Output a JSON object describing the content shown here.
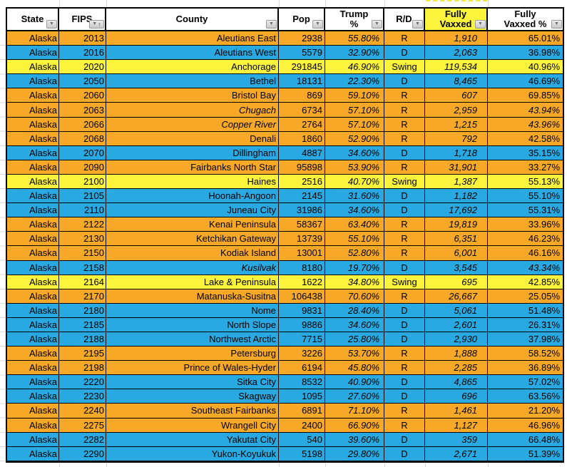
{
  "header": {
    "state": "State",
    "fips": "FIPS",
    "county": "County",
    "pop": "Pop",
    "trump": "Trump\n%",
    "rd": "R/D",
    "vaxxed": "Fully\nVaxxed",
    "vaxxed_pct": "Fully\nVaxxed %"
  },
  "icons": {
    "filter": "▼",
    "sort_ascending": "↑"
  },
  "colors": {
    "republican_row": "#f7a826",
    "democrat_row": "#29a9e1",
    "swing_row": "#fbf33c",
    "vaxxed_header_bg": "#fbf33c"
  },
  "rows": [
    {
      "state": "Alaska",
      "fips": "2013",
      "county": "Aleutians East",
      "pop": "2938",
      "trump": "55.80%",
      "rd": "R",
      "vaxxed": "1,910",
      "vaxxed_pct": "65.01%",
      "italic": false
    },
    {
      "state": "Alaska",
      "fips": "2016",
      "county": "Aleutians West",
      "pop": "5579",
      "trump": "32.90%",
      "rd": "D",
      "vaxxed": "2,063",
      "vaxxed_pct": "36.98%",
      "italic": false
    },
    {
      "state": "Alaska",
      "fips": "2020",
      "county": "Anchorage",
      "pop": "291845",
      "trump": "46.90%",
      "rd": "Swing",
      "vaxxed": "119,534",
      "vaxxed_pct": "40.96%",
      "italic": false
    },
    {
      "state": "Alaska",
      "fips": "2050",
      "county": "Bethel",
      "pop": "18131",
      "trump": "22.30%",
      "rd": "D",
      "vaxxed": "8,465",
      "vaxxed_pct": "46.69%",
      "italic": false
    },
    {
      "state": "Alaska",
      "fips": "2060",
      "county": "Bristol Bay",
      "pop": "869",
      "trump": "59.10%",
      "rd": "R",
      "vaxxed": "607",
      "vaxxed_pct": "69.85%",
      "italic": false
    },
    {
      "state": "Alaska",
      "fips": "2063",
      "county": "Chugach",
      "pop": "6734",
      "trump": "57.10%",
      "rd": "R",
      "vaxxed": "2,959",
      "vaxxed_pct": "43.94%",
      "italic": true
    },
    {
      "state": "Alaska",
      "fips": "2066",
      "county": "Copper River",
      "pop": "2764",
      "trump": "57.10%",
      "rd": "R",
      "vaxxed": "1,215",
      "vaxxed_pct": "43.96%",
      "italic": true
    },
    {
      "state": "Alaska",
      "fips": "2068",
      "county": "Denali",
      "pop": "1860",
      "trump": "52.90%",
      "rd": "R",
      "vaxxed": "792",
      "vaxxed_pct": "42.58%",
      "italic": false
    },
    {
      "state": "Alaska",
      "fips": "2070",
      "county": "Dillingham",
      "pop": "4887",
      "trump": "34.60%",
      "rd": "D",
      "vaxxed": "1,718",
      "vaxxed_pct": "35.15%",
      "italic": false
    },
    {
      "state": "Alaska",
      "fips": "2090",
      "county": "Fairbanks North Star",
      "pop": "95898",
      "trump": "53.90%",
      "rd": "R",
      "vaxxed": "31,901",
      "vaxxed_pct": "33.27%",
      "italic": false
    },
    {
      "state": "Alaska",
      "fips": "2100",
      "county": "Haines",
      "pop": "2516",
      "trump": "40.70%",
      "rd": "Swing",
      "vaxxed": "1,387",
      "vaxxed_pct": "55.13%",
      "italic": false
    },
    {
      "state": "Alaska",
      "fips": "2105",
      "county": "Hoonah-Angoon",
      "pop": "2145",
      "trump": "31.60%",
      "rd": "D",
      "vaxxed": "1,182",
      "vaxxed_pct": "55.10%",
      "italic": false
    },
    {
      "state": "Alaska",
      "fips": "2110",
      "county": "Juneau City",
      "pop": "31986",
      "trump": "34.60%",
      "rd": "D",
      "vaxxed": "17,692",
      "vaxxed_pct": "55.31%",
      "italic": false
    },
    {
      "state": "Alaska",
      "fips": "2122",
      "county": "Kenai Peninsula",
      "pop": "58367",
      "trump": "63.40%",
      "rd": "R",
      "vaxxed": "19,819",
      "vaxxed_pct": "33.96%",
      "italic": false
    },
    {
      "state": "Alaska",
      "fips": "2130",
      "county": "Ketchikan Gateway",
      "pop": "13739",
      "trump": "55.10%",
      "rd": "R",
      "vaxxed": "6,351",
      "vaxxed_pct": "46.23%",
      "italic": false
    },
    {
      "state": "Alaska",
      "fips": "2150",
      "county": "Kodiak Island",
      "pop": "13001",
      "trump": "52.80%",
      "rd": "R",
      "vaxxed": "6,001",
      "vaxxed_pct": "46.16%",
      "italic": false
    },
    {
      "state": "Alaska",
      "fips": "2158",
      "county": "Kusilvak",
      "pop": "8180",
      "trump": "19.70%",
      "rd": "D",
      "vaxxed": "3,545",
      "vaxxed_pct": "43.34%",
      "italic": true
    },
    {
      "state": "Alaska",
      "fips": "2164",
      "county": "Lake & Peninsula",
      "pop": "1622",
      "trump": "34.80%",
      "rd": "Swing",
      "vaxxed": "695",
      "vaxxed_pct": "42.85%",
      "italic": false
    },
    {
      "state": "Alaska",
      "fips": "2170",
      "county": "Matanuska-Susitna",
      "pop": "106438",
      "trump": "70.60%",
      "rd": "R",
      "vaxxed": "26,667",
      "vaxxed_pct": "25.05%",
      "italic": false
    },
    {
      "state": "Alaska",
      "fips": "2180",
      "county": "Nome",
      "pop": "9831",
      "trump": "28.40%",
      "rd": "D",
      "vaxxed": "5,061",
      "vaxxed_pct": "51.48%",
      "italic": false
    },
    {
      "state": "Alaska",
      "fips": "2185",
      "county": "North Slope",
      "pop": "9886",
      "trump": "34.60%",
      "rd": "D",
      "vaxxed": "2,601",
      "vaxxed_pct": "26.31%",
      "italic": false
    },
    {
      "state": "Alaska",
      "fips": "2188",
      "county": "Northwest Arctic",
      "pop": "7715",
      "trump": "25.80%",
      "rd": "D",
      "vaxxed": "2,930",
      "vaxxed_pct": "37.98%",
      "italic": false
    },
    {
      "state": "Alaska",
      "fips": "2195",
      "county": "Petersburg",
      "pop": "3226",
      "trump": "53.70%",
      "rd": "R",
      "vaxxed": "1,888",
      "vaxxed_pct": "58.52%",
      "italic": false
    },
    {
      "state": "Alaska",
      "fips": "2198",
      "county": "Prince of Wales-Hyder",
      "pop": "6194",
      "trump": "45.80%",
      "rd": "R",
      "vaxxed": "2,285",
      "vaxxed_pct": "36.89%",
      "italic": false
    },
    {
      "state": "Alaska",
      "fips": "2220",
      "county": "Sitka City",
      "pop": "8532",
      "trump": "40.90%",
      "rd": "D",
      "vaxxed": "4,865",
      "vaxxed_pct": "57.02%",
      "italic": false
    },
    {
      "state": "Alaska",
      "fips": "2230",
      "county": "Skagway",
      "pop": "1095",
      "trump": "27.60%",
      "rd": "D",
      "vaxxed": "696",
      "vaxxed_pct": "63.56%",
      "italic": false
    },
    {
      "state": "Alaska",
      "fips": "2240",
      "county": "Southeast Fairbanks",
      "pop": "6891",
      "trump": "71.10%",
      "rd": "R",
      "vaxxed": "1,461",
      "vaxxed_pct": "21.20%",
      "italic": false
    },
    {
      "state": "Alaska",
      "fips": "2275",
      "county": "Wrangell City",
      "pop": "2400",
      "trump": "66.90%",
      "rd": "R",
      "vaxxed": "1,127",
      "vaxxed_pct": "46.96%",
      "italic": false
    },
    {
      "state": "Alaska",
      "fips": "2282",
      "county": "Yakutat City",
      "pop": "540",
      "trump": "39.60%",
      "rd": "D",
      "vaxxed": "359",
      "vaxxed_pct": "66.48%",
      "italic": false
    },
    {
      "state": "Alaska",
      "fips": "2290",
      "county": "Yukon-Koyukuk",
      "pop": "5198",
      "trump": "29.80%",
      "rd": "D",
      "vaxxed": "2,671",
      "vaxxed_pct": "51.39%",
      "italic": false
    }
  ]
}
